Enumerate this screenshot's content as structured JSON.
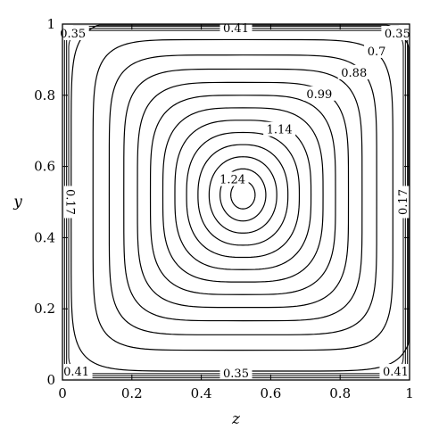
{
  "chart_data": {
    "type": "contour",
    "xlabel": "z",
    "ylabel": "y",
    "xlim": [
      0,
      1
    ],
    "ylim": [
      0,
      1
    ],
    "x_ticks": [
      "0",
      "0.2",
      "0.4",
      "0.6",
      "0.8",
      "1"
    ],
    "y_ticks": [
      "0",
      "0.2",
      "0.4",
      "0.6",
      "0.8",
      "1"
    ],
    "x_tick_values": [
      0,
      0.2,
      0.4,
      0.6,
      0.8,
      1
    ],
    "y_tick_values": [
      0,
      0.2,
      0.4,
      0.6,
      0.8,
      1
    ],
    "grid": false,
    "contour_center": [
      0.52,
      0.52
    ],
    "contour_levels": [
      0.17,
      0.35,
      0.41,
      0.55,
      0.7,
      0.79,
      0.88,
      0.94,
      0.99,
      1.06,
      1.14,
      1.19,
      1.24
    ],
    "contour_labels": [
      {
        "text": "0.41",
        "x": 0.5,
        "y": 0.99
      },
      {
        "text": "0.35",
        "x": 0.5,
        "y": 0.02
      },
      {
        "text": "0.35",
        "x": 0.03,
        "y": 0.975
      },
      {
        "text": "0.35",
        "x": 0.965,
        "y": 0.975
      },
      {
        "text": "0.7",
        "x": 0.905,
        "y": 0.925
      },
      {
        "text": "0.88",
        "x": 0.84,
        "y": 0.865
      },
      {
        "text": "0.99",
        "x": 0.74,
        "y": 0.805
      },
      {
        "text": "1.14",
        "x": 0.625,
        "y": 0.705
      },
      {
        "text": "1.24",
        "x": 0.49,
        "y": 0.565
      },
      {
        "text": "0.17",
        "x": 0.025,
        "y": 0.5
      },
      {
        "text": "0.17",
        "x": 0.98,
        "y": 0.5
      },
      {
        "text": "0.41",
        "x": 0.04,
        "y": 0.025
      },
      {
        "text": "0.41",
        "x": 0.96,
        "y": 0.025
      }
    ]
  }
}
